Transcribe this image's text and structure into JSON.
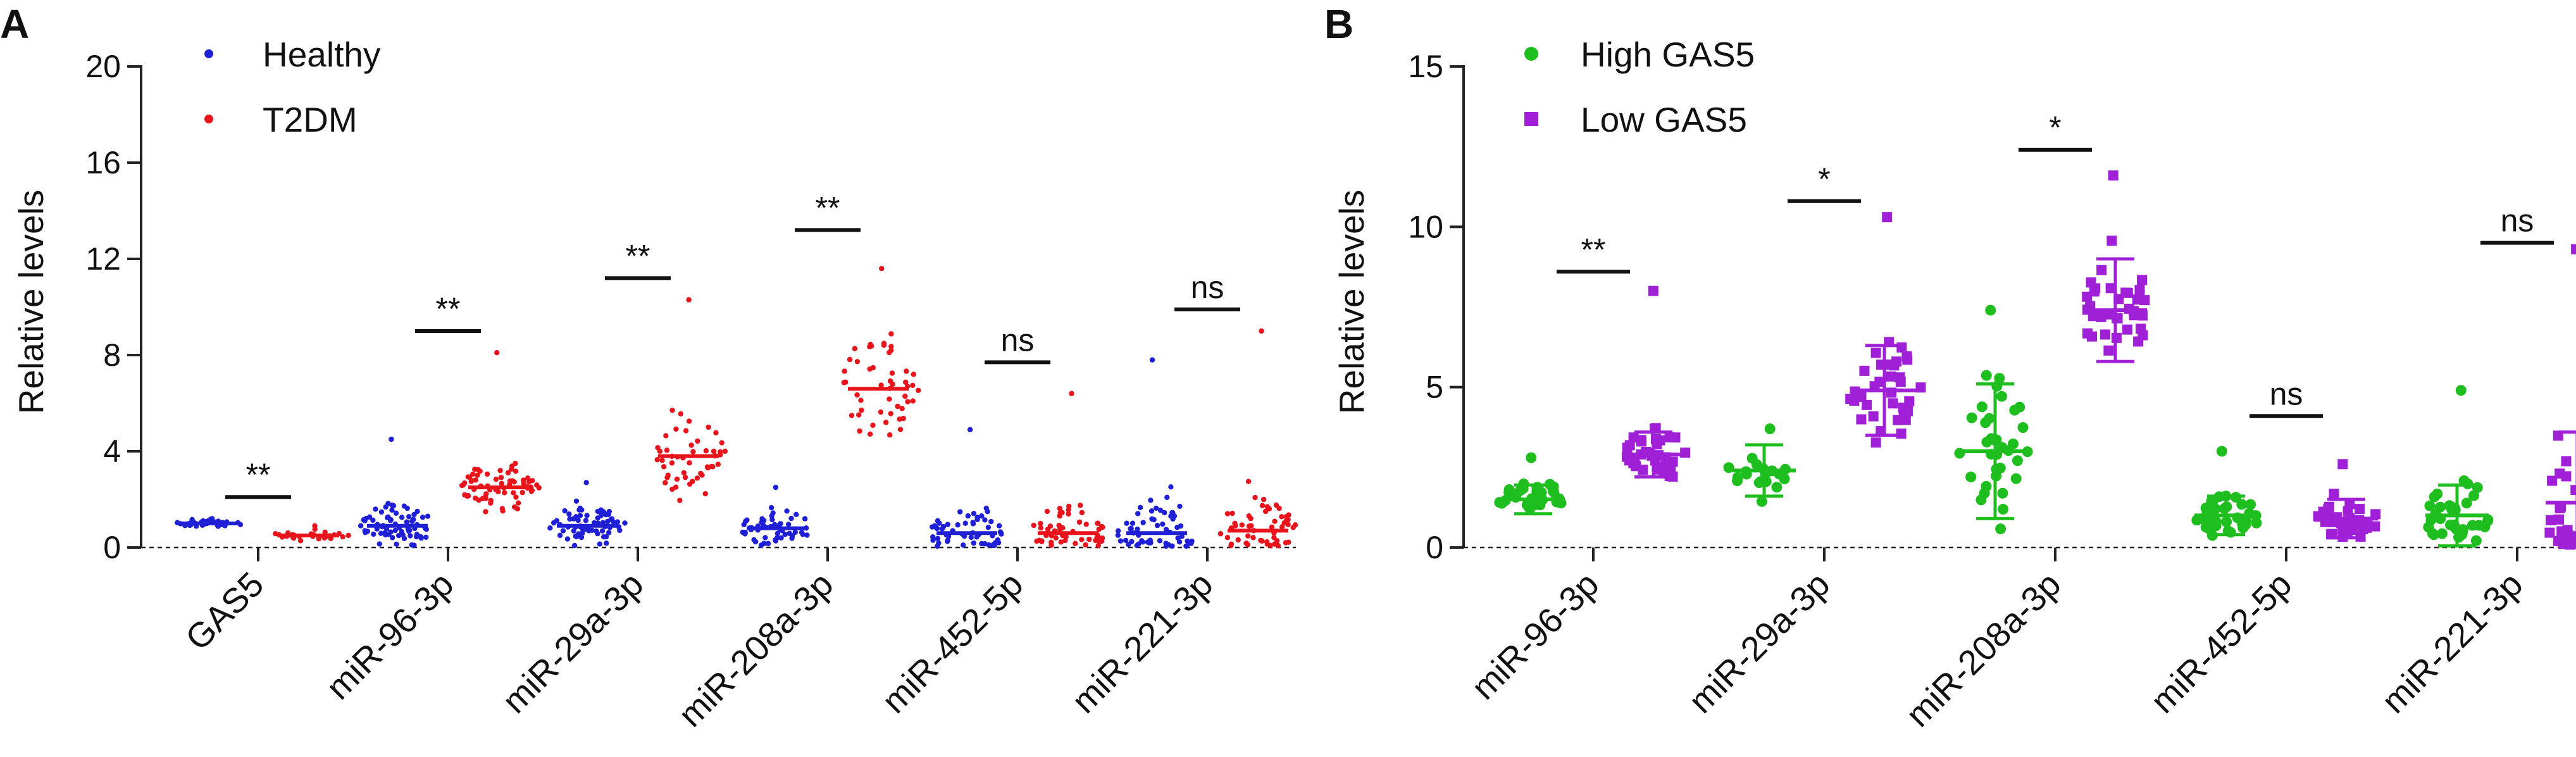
{
  "chart_data": [
    {
      "panel_label": "A",
      "type": "scatter",
      "title": "",
      "xlabel": "",
      "ylabel": "Relative levels",
      "ylim": [
        0,
        20
      ],
      "yticks": [
        0,
        4,
        8,
        12,
        16,
        20
      ],
      "grid": false,
      "legend_position": "top-left",
      "categories": [
        "GAS5",
        "miR-96-3p",
        "miR-29a-3p",
        "miR-208a-3p",
        "miR-452-5p",
        "miR-221-3p"
      ],
      "series": [
        {
          "name": "Healthy",
          "color": "#1f1fd6",
          "marker": "dot",
          "centers": [
            1.0,
            0.9,
            0.9,
            0.8,
            0.6,
            0.6
          ],
          "spreads": [
            0.15,
            0.8,
            0.7,
            0.7,
            1.2,
            1.5
          ],
          "max_values": [
            1.2,
            4.5,
            2.7,
            2.5,
            4.9,
            7.8
          ],
          "counts": [
            40,
            70,
            70,
            55,
            60,
            60
          ]
        },
        {
          "name": "T2DM",
          "color": "#e8131b",
          "marker": "dot",
          "centers": [
            0.5,
            2.5,
            3.8,
            6.6,
            0.6,
            0.7
          ],
          "spreads": [
            0.2,
            0.9,
            1.6,
            2.1,
            1.0,
            1.5
          ],
          "max_values": [
            0.9,
            8.1,
            10.3,
            11.6,
            6.4,
            9.0
          ],
          "counts": [
            30,
            70,
            50,
            50,
            55,
            55
          ]
        }
      ],
      "significance": [
        {
          "category": "GAS5",
          "label": "**",
          "y": 2.1
        },
        {
          "category": "miR-96-3p",
          "label": "**",
          "y": 9.0
        },
        {
          "category": "miR-29a-3p",
          "label": "**",
          "y": 11.2
        },
        {
          "category": "miR-208a-3p",
          "label": "**",
          "y": 13.2
        },
        {
          "category": "miR-452-5p",
          "label": "ns",
          "y": 7.7
        },
        {
          "category": "miR-221-3p",
          "label": "ns",
          "y": 9.9
        }
      ]
    },
    {
      "panel_label": "B",
      "type": "scatter",
      "title": "",
      "xlabel": "",
      "ylabel": "Relative levels",
      "ylim": [
        0,
        15
      ],
      "yticks": [
        0,
        5,
        10,
        15
      ],
      "grid": false,
      "legend_position": "top-left",
      "categories": [
        "miR-96-3p",
        "miR-29a-3p",
        "miR-208a-3p",
        "miR-452-5p",
        "miR-221-3p"
      ],
      "series": [
        {
          "name": "High GAS5",
          "color": "#1fbe1f",
          "marker": "circle",
          "means": [
            1.5,
            2.4,
            3.0,
            1.0,
            1.0
          ],
          "sd": [
            0.45,
            0.8,
            2.1,
            0.6,
            0.95
          ],
          "max_values": [
            2.8,
            3.7,
            7.4,
            3.0,
            4.9
          ],
          "counts": [
            35,
            20,
            35,
            35,
            35
          ]
        },
        {
          "name": "Low GAS5",
          "color": "#a020d8",
          "marker": "square",
          "means": [
            2.9,
            4.9,
            7.4,
            0.9,
            1.4
          ],
          "sd": [
            0.7,
            1.4,
            1.6,
            0.6,
            2.2
          ],
          "max_values": [
            8.0,
            10.3,
            11.6,
            2.6,
            9.3
          ],
          "counts": [
            35,
            35,
            35,
            35,
            35
          ]
        }
      ],
      "significance": [
        {
          "category": "miR-96-3p",
          "label": "**",
          "y": 8.6
        },
        {
          "category": "miR-29a-3p",
          "label": "*",
          "y": 10.8
        },
        {
          "category": "miR-208a-3p",
          "label": "*",
          "y": 12.4
        },
        {
          "category": "miR-452-5p",
          "label": "ns",
          "y": 4.1
        },
        {
          "category": "miR-221-3p",
          "label": "ns",
          "y": 9.5
        }
      ]
    }
  ]
}
